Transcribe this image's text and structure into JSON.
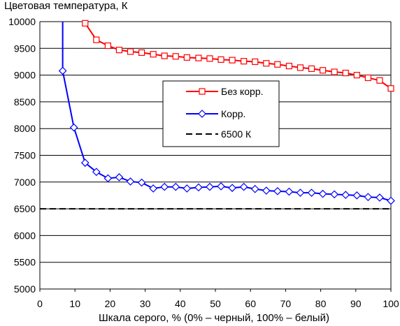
{
  "chart_data": {
    "type": "line",
    "ylabel": "Цветовая температура, К",
    "xlabel": "Шкала серого, % (0% – черный, 100% – белый)",
    "xlim": [
      0,
      100
    ],
    "ylim": [
      5000,
      10000
    ],
    "x_ticks": [
      0,
      10,
      20,
      30,
      40,
      50,
      60,
      70,
      80,
      90,
      100
    ],
    "y_ticks": [
      5000,
      5500,
      6000,
      6500,
      7000,
      7500,
      8000,
      8500,
      9000,
      9500,
      10000
    ],
    "grid": "horizontal",
    "legend_position": "center",
    "series": [
      {
        "name": "Без корр.",
        "color": "#ff0000",
        "marker": "square",
        "line_from": {
          "x": 12.3,
          "y": 10000
        },
        "x": [
          12.9,
          16.1,
          19.4,
          22.6,
          25.8,
          29.0,
          32.3,
          35.5,
          38.7,
          41.9,
          45.2,
          48.4,
          51.6,
          54.8,
          58.1,
          61.3,
          64.5,
          67.7,
          71.0,
          74.2,
          77.4,
          80.6,
          83.9,
          87.1,
          90.3,
          93.5,
          96.8,
          100.0
        ],
        "y": [
          9970,
          9660,
          9550,
          9470,
          9440,
          9420,
          9390,
          9360,
          9350,
          9330,
          9320,
          9310,
          9290,
          9280,
          9260,
          9250,
          9220,
          9200,
          9170,
          9140,
          9120,
          9090,
          9060,
          9040,
          9000,
          8950,
          8900,
          8750
        ]
      },
      {
        "name": "Корр.",
        "color": "#0000ff",
        "marker": "diamond",
        "line_from": {
          "x": 6.5,
          "y": 10000
        },
        "x": [
          6.5,
          9.7,
          12.9,
          16.1,
          19.4,
          22.6,
          25.8,
          29.0,
          32.3,
          35.5,
          38.7,
          41.9,
          45.2,
          48.4,
          51.6,
          54.8,
          58.1,
          61.3,
          64.5,
          67.7,
          71.0,
          74.2,
          77.4,
          80.6,
          83.9,
          87.1,
          90.3,
          93.5,
          96.8,
          100.0
        ],
        "y": [
          9080,
          8020,
          7360,
          7190,
          7070,
          7090,
          7010,
          6990,
          6880,
          6910,
          6910,
          6880,
          6900,
          6910,
          6920,
          6890,
          6910,
          6870,
          6840,
          6830,
          6820,
          6800,
          6800,
          6780,
          6770,
          6760,
          6750,
          6720,
          6710,
          6650
        ]
      },
      {
        "name": "6500 К",
        "color": "#000000",
        "style": "dashed",
        "x": [
          0,
          100
        ],
        "y": [
          6500,
          6500
        ]
      }
    ]
  }
}
